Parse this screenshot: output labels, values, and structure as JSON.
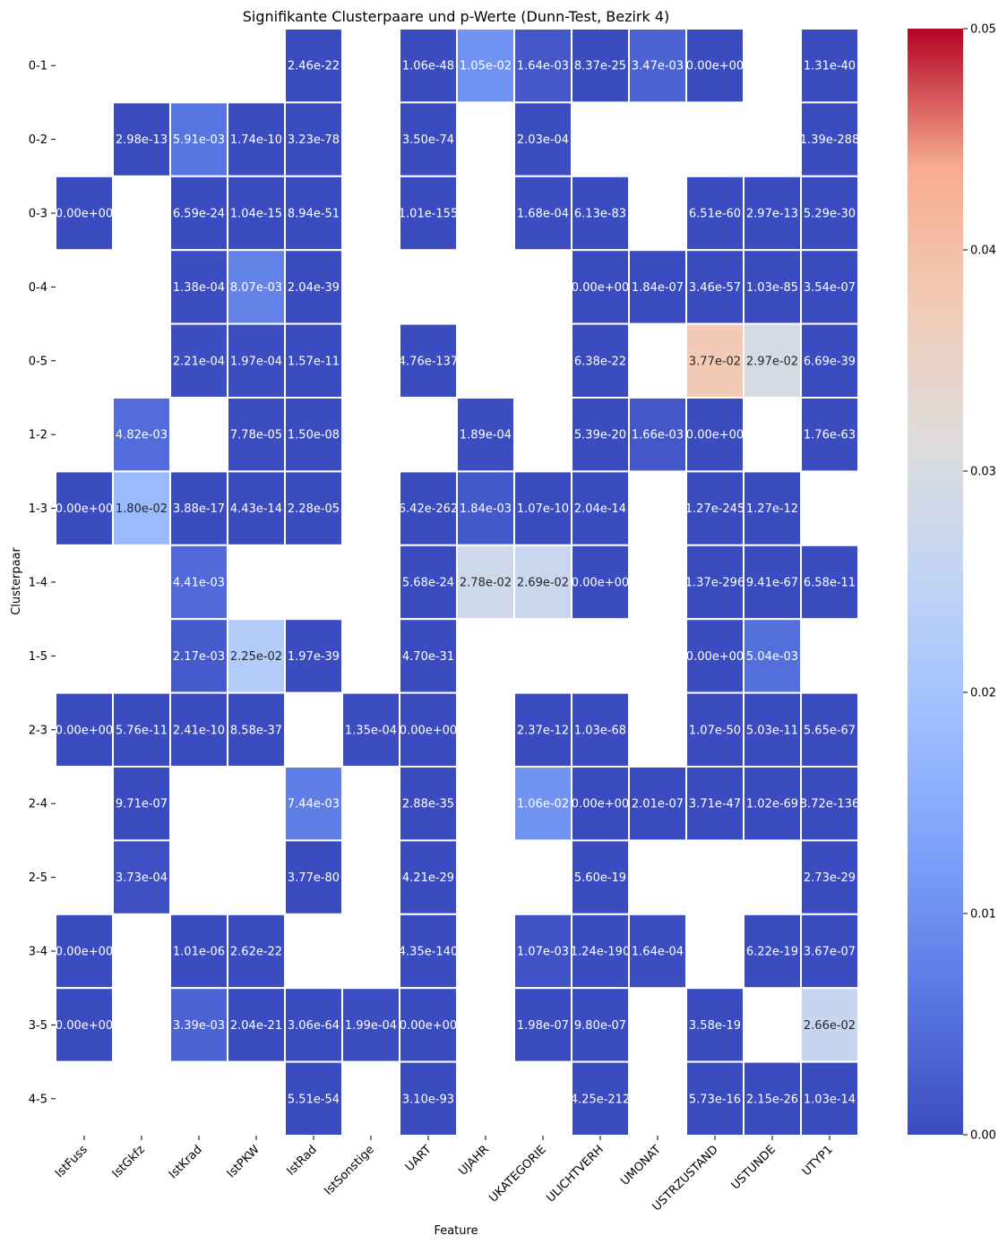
{
  "chart_data": {
    "type": "heatmap",
    "title": "Signifikante Clusterpaare und p-Werte (Dunn-Test, Bezirk 4)",
    "xlabel": "Feature",
    "ylabel": "Clusterpaar",
    "columns": [
      "IstFuss",
      "IstGkfz",
      "IstKrad",
      "IstPKW",
      "IstRad",
      "IstSonstige",
      "UART",
      "UJAHR",
      "UKATEGORIE",
      "ULICHTVERH",
      "UMONAT",
      "USTRZUSTAND",
      "USTUNDE",
      "UTYP1"
    ],
    "rows": [
      "0-1",
      "0-2",
      "0-3",
      "0-4",
      "0-5",
      "1-2",
      "1-3",
      "1-4",
      "1-5",
      "2-3",
      "2-4",
      "2-5",
      "3-4",
      "3-5",
      "4-5"
    ],
    "cells": [
      [
        null,
        null,
        null,
        null,
        "2.46e-22",
        null,
        "1.06e-48",
        "1.05e-02",
        "1.64e-03",
        "8.37e-25",
        "3.47e-03",
        "0.00e+00",
        null,
        "1.31e-40"
      ],
      [
        null,
        "2.98e-13",
        "5.91e-03",
        "1.74e-10",
        "3.23e-78",
        null,
        "3.50e-74",
        null,
        "2.03e-04",
        null,
        null,
        null,
        null,
        "1.39e-288"
      ],
      [
        "0.00e+00",
        null,
        "6.59e-24",
        "1.04e-15",
        "8.94e-51",
        null,
        "1.01e-155",
        null,
        "1.68e-04",
        "6.13e-83",
        null,
        "6.51e-60",
        "2.97e-13",
        "5.29e-30"
      ],
      [
        null,
        null,
        "1.38e-04",
        "8.07e-03",
        "2.04e-39",
        null,
        null,
        null,
        null,
        "0.00e+00",
        "1.84e-07",
        "3.46e-57",
        "1.03e-85",
        "3.54e-07"
      ],
      [
        null,
        null,
        "2.21e-04",
        "1.97e-04",
        "1.57e-11",
        null,
        "4.76e-137",
        null,
        null,
        "6.38e-22",
        null,
        "3.77e-02",
        "2.97e-02",
        "6.69e-39"
      ],
      [
        null,
        "4.82e-03",
        null,
        "7.78e-05",
        "1.50e-08",
        null,
        null,
        "1.89e-04",
        null,
        "5.39e-20",
        "1.66e-03",
        "0.00e+00",
        null,
        "1.76e-63"
      ],
      [
        "0.00e+00",
        "1.80e-02",
        "3.88e-17",
        "4.43e-14",
        "2.28e-05",
        null,
        "6.42e-262",
        "1.84e-03",
        "1.07e-10",
        "2.04e-14",
        null,
        "1.27e-245",
        "1.27e-12",
        null
      ],
      [
        null,
        null,
        "4.41e-03",
        null,
        null,
        null,
        "5.68e-24",
        "2.78e-02",
        "2.69e-02",
        "0.00e+00",
        null,
        "1.37e-296",
        "9.41e-67",
        "6.58e-11"
      ],
      [
        null,
        null,
        "2.17e-03",
        "2.25e-02",
        "1.97e-39",
        null,
        "4.70e-31",
        null,
        null,
        null,
        null,
        "0.00e+00",
        "5.04e-03",
        null
      ],
      [
        "0.00e+00",
        "5.76e-11",
        "2.41e-10",
        "8.58e-37",
        null,
        "1.35e-04",
        "0.00e+00",
        null,
        "2.37e-12",
        "1.03e-68",
        null,
        "1.07e-50",
        "5.03e-11",
        "5.65e-67"
      ],
      [
        null,
        "9.71e-07",
        null,
        null,
        "7.44e-03",
        null,
        "2.88e-35",
        null,
        "1.06e-02",
        "0.00e+00",
        "2.01e-07",
        "3.71e-47",
        "1.02e-69",
        "8.72e-136"
      ],
      [
        null,
        "3.73e-04",
        null,
        null,
        "3.77e-80",
        null,
        "4.21e-29",
        null,
        null,
        "5.60e-19",
        null,
        null,
        null,
        "2.73e-29"
      ],
      [
        "0.00e+00",
        null,
        "1.01e-06",
        "2.62e-22",
        null,
        null,
        "4.35e-140",
        null,
        "1.07e-03",
        "1.24e-190",
        "1.64e-04",
        null,
        "6.22e-19",
        "3.67e-07"
      ],
      [
        "0.00e+00",
        null,
        "3.39e-03",
        "2.04e-21",
        "3.06e-64",
        "1.99e-04",
        "0.00e+00",
        null,
        "1.98e-07",
        "9.80e-07",
        null,
        "3.58e-19",
        null,
        "2.66e-02"
      ],
      [
        null,
        null,
        null,
        null,
        "5.51e-54",
        null,
        "3.10e-93",
        null,
        null,
        "4.25e-212",
        null,
        "5.73e-16",
        "2.15e-26",
        "1.03e-14"
      ]
    ],
    "colorbar": {
      "colormap": "coolwarm",
      "vmin": 0.0,
      "vmax": 0.05,
      "ticks": [
        "0.00",
        "0.01",
        "0.02",
        "0.03",
        "0.04",
        "0.05"
      ]
    },
    "grid": false,
    "legend": "colorbar-right"
  }
}
